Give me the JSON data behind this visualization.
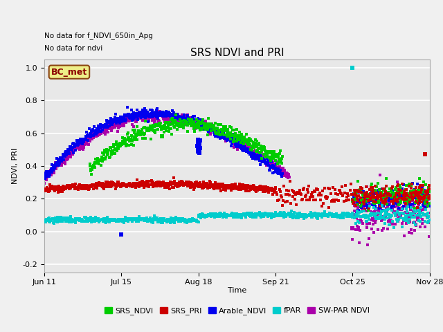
{
  "title": "SRS NDVI and PRI",
  "ylabel": "NDVI, PRI",
  "xlabel": "Time",
  "note1": "No data for f_NDVI_650in_Apg",
  "note2": "No data for ndvi",
  "annotation": "BC_met",
  "ylim": [
    -0.25,
    1.05
  ],
  "xlim_start": 0,
  "xlim_end": 170,
  "xtick_positions": [
    0,
    34,
    68,
    102,
    136,
    170
  ],
  "xtick_labels": [
    "Jun 11",
    "Jul 15",
    "Aug 18",
    "Sep 21",
    "Oct 25",
    "Nov 28"
  ],
  "ytick_positions": [
    -0.2,
    0.0,
    0.2,
    0.4,
    0.6,
    0.8,
    1.0
  ],
  "background_color": "#f0f0f0",
  "plot_bg_color": "#e8e8e8",
  "grid_color": "#ffffff",
  "colors": {
    "SRS_NDVI": "#00cc00",
    "SRS_PRI": "#cc0000",
    "Arable_NDVI": "#0000ee",
    "fPAR": "#00cccc",
    "SW_PAR_NDVI": "#aa00aa"
  },
  "legend_items": [
    "SRS_NDVI",
    "SRS_PRI",
    "Arable_NDVI",
    "fPAR",
    "SW-PAR NDVI"
  ]
}
